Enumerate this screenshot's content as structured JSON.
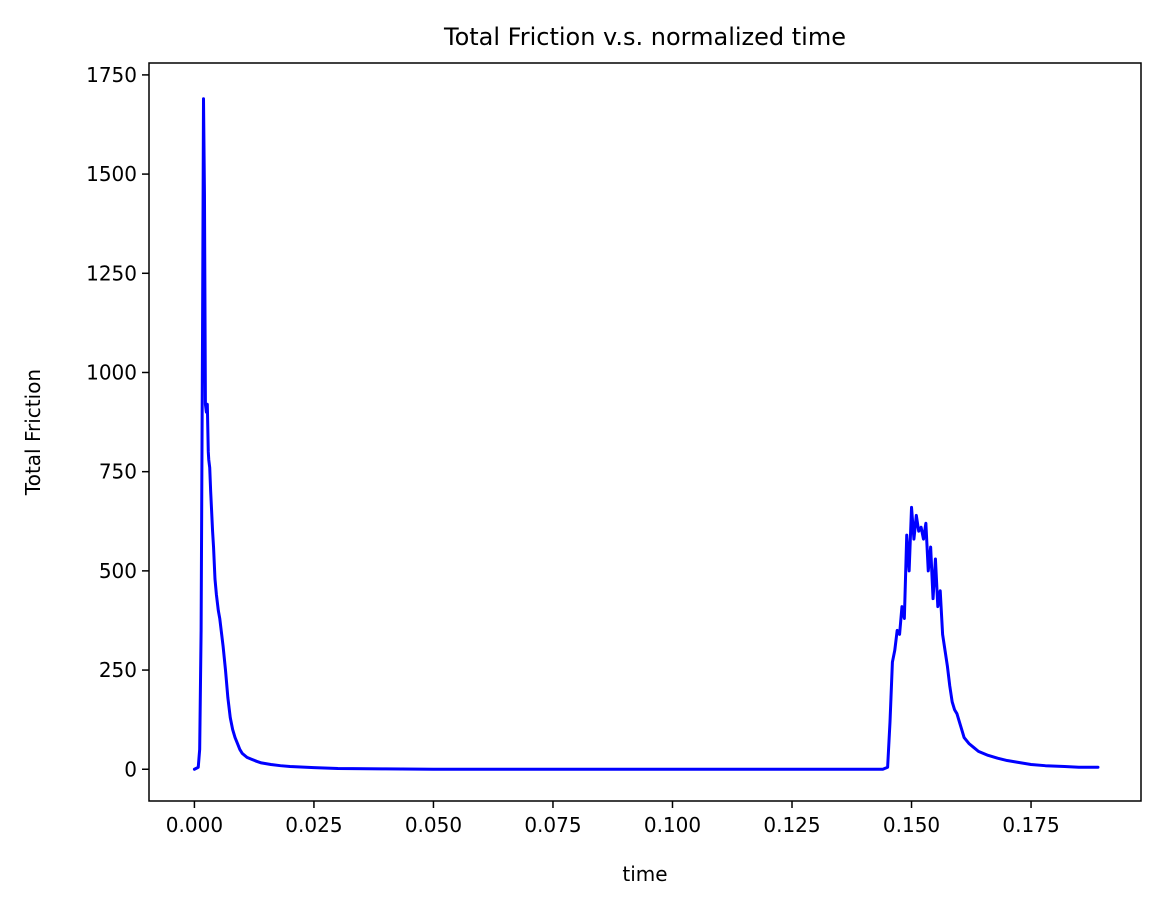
{
  "chart_data": {
    "type": "line",
    "title": "Total Friction v.s. normalized time",
    "xlabel": "time",
    "ylabel": "Total Friction",
    "xlim": [
      -0.0095,
      0.198
    ],
    "ylim": [
      -80,
      1780
    ],
    "grid": false,
    "x_ticks": [
      0.0,
      0.025,
      0.05,
      0.075,
      0.1,
      0.125,
      0.15,
      0.175
    ],
    "x_tick_labels": [
      "0.000",
      "0.025",
      "0.050",
      "0.075",
      "0.100",
      "0.125",
      "0.150",
      "0.175"
    ],
    "y_ticks": [
      0,
      250,
      500,
      750,
      1000,
      1250,
      1500,
      1750
    ],
    "y_tick_labels": [
      "0",
      "250",
      "500",
      "750",
      "1000",
      "1250",
      "1500",
      "1750"
    ],
    "series": [
      {
        "color": "#0000ff",
        "x": [
          0.0,
          0.0008,
          0.0011,
          0.0014,
          0.0017,
          0.0019,
          0.0021,
          0.0023,
          0.0025,
          0.0027,
          0.0029,
          0.003,
          0.0032,
          0.0034,
          0.0036,
          0.0038,
          0.004,
          0.0043,
          0.0046,
          0.005,
          0.0053,
          0.0056,
          0.006,
          0.0065,
          0.007,
          0.0075,
          0.008,
          0.0085,
          0.009,
          0.0095,
          0.01,
          0.0105,
          0.011,
          0.012,
          0.013,
          0.014,
          0.016,
          0.018,
          0.02,
          0.025,
          0.03,
          0.04,
          0.05,
          0.075,
          0.1,
          0.125,
          0.144,
          0.145,
          0.1455,
          0.146,
          0.1465,
          0.147,
          0.1475,
          0.148,
          0.1485,
          0.149,
          0.1495,
          0.15,
          0.1505,
          0.151,
          0.1515,
          0.152,
          0.1525,
          0.153,
          0.1535,
          0.154,
          0.1545,
          0.155,
          0.1555,
          0.156,
          0.1565,
          0.157,
          0.1575,
          0.158,
          0.1585,
          0.159,
          0.1595,
          0.16,
          0.1605,
          0.161,
          0.162,
          0.163,
          0.164,
          0.166,
          0.168,
          0.17,
          0.172,
          0.175,
          0.178,
          0.182,
          0.185,
          0.189
        ],
        "y": [
          0,
          5,
          50,
          350,
          1100,
          1690,
          1450,
          920,
          900,
          920,
          800,
          780,
          760,
          700,
          650,
          600,
          560,
          480,
          440,
          400,
          380,
          350,
          310,
          250,
          180,
          130,
          100,
          80,
          65,
          50,
          40,
          35,
          30,
          25,
          20,
          16,
          12,
          9,
          7,
          4,
          2,
          1,
          0,
          0,
          0,
          0,
          0,
          5,
          120,
          270,
          300,
          350,
          340,
          410,
          380,
          590,
          500,
          660,
          580,
          640,
          600,
          610,
          580,
          620,
          500,
          560,
          430,
          530,
          410,
          450,
          340,
          300,
          260,
          210,
          170,
          150,
          140,
          120,
          100,
          80,
          65,
          55,
          45,
          35,
          28,
          22,
          18,
          12,
          9,
          7,
          5,
          5
        ]
      }
    ]
  }
}
